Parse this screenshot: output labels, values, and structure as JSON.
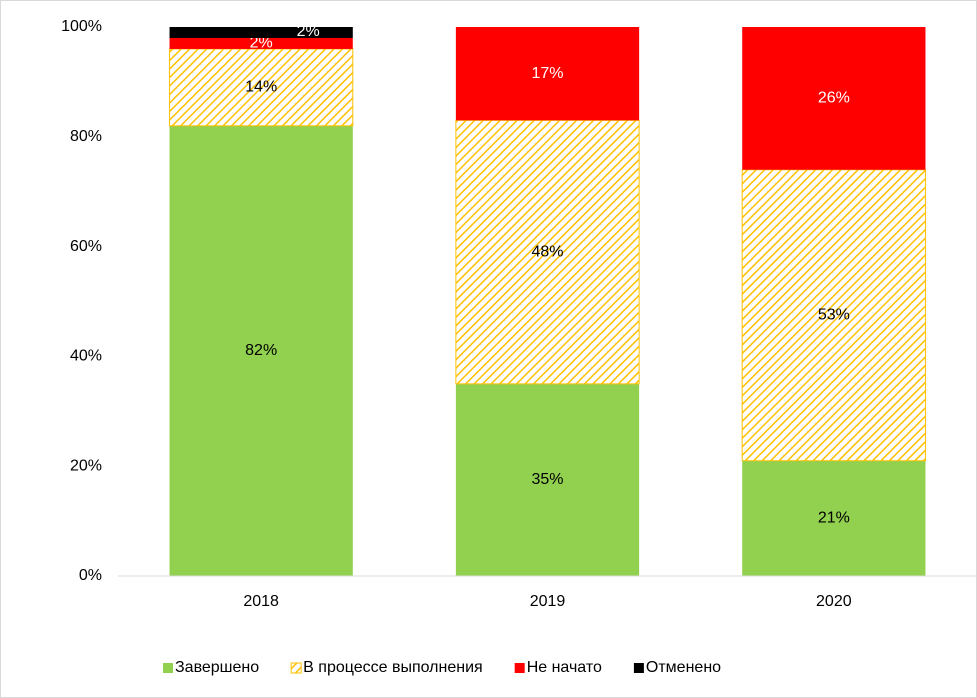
{
  "chart_data": {
    "type": "stacked_bar",
    "categories": [
      "2018",
      "2019",
      "2020"
    ],
    "series": [
      {
        "name": "Завершено",
        "color": "#92d050",
        "label_color": "#000000",
        "values": [
          82,
          35,
          21
        ],
        "value_labels": [
          "82%",
          "35%",
          "21%"
        ]
      },
      {
        "name": "В процессе выполнения",
        "color": "#ffc000",
        "pattern": "hatch",
        "label_color": "#000000",
        "values": [
          14,
          48,
          53
        ],
        "value_labels": [
          "14%",
          "48%",
          "53%"
        ]
      },
      {
        "name": "Не начато",
        "color": "#ff0000",
        "label_color": "#ffffff",
        "values": [
          2,
          17,
          26
        ],
        "value_labels": [
          "2%",
          "17%",
          "26%"
        ]
      },
      {
        "name": "Отменено",
        "color": "#000000",
        "label_color": "#ffffff",
        "values": [
          2,
          0,
          0
        ],
        "value_labels": [
          "2%",
          null,
          null
        ]
      }
    ],
    "ylim": [
      0,
      100
    ],
    "yticks": [
      {
        "value": 0,
        "label": "0%"
      },
      {
        "value": 20,
        "label": "20%"
      },
      {
        "value": 40,
        "label": "40%"
      },
      {
        "value": 60,
        "label": "60%"
      },
      {
        "value": 80,
        "label": "80%"
      },
      {
        "value": 100,
        "label": "100%"
      }
    ],
    "grid": false,
    "legend": "bottom"
  }
}
